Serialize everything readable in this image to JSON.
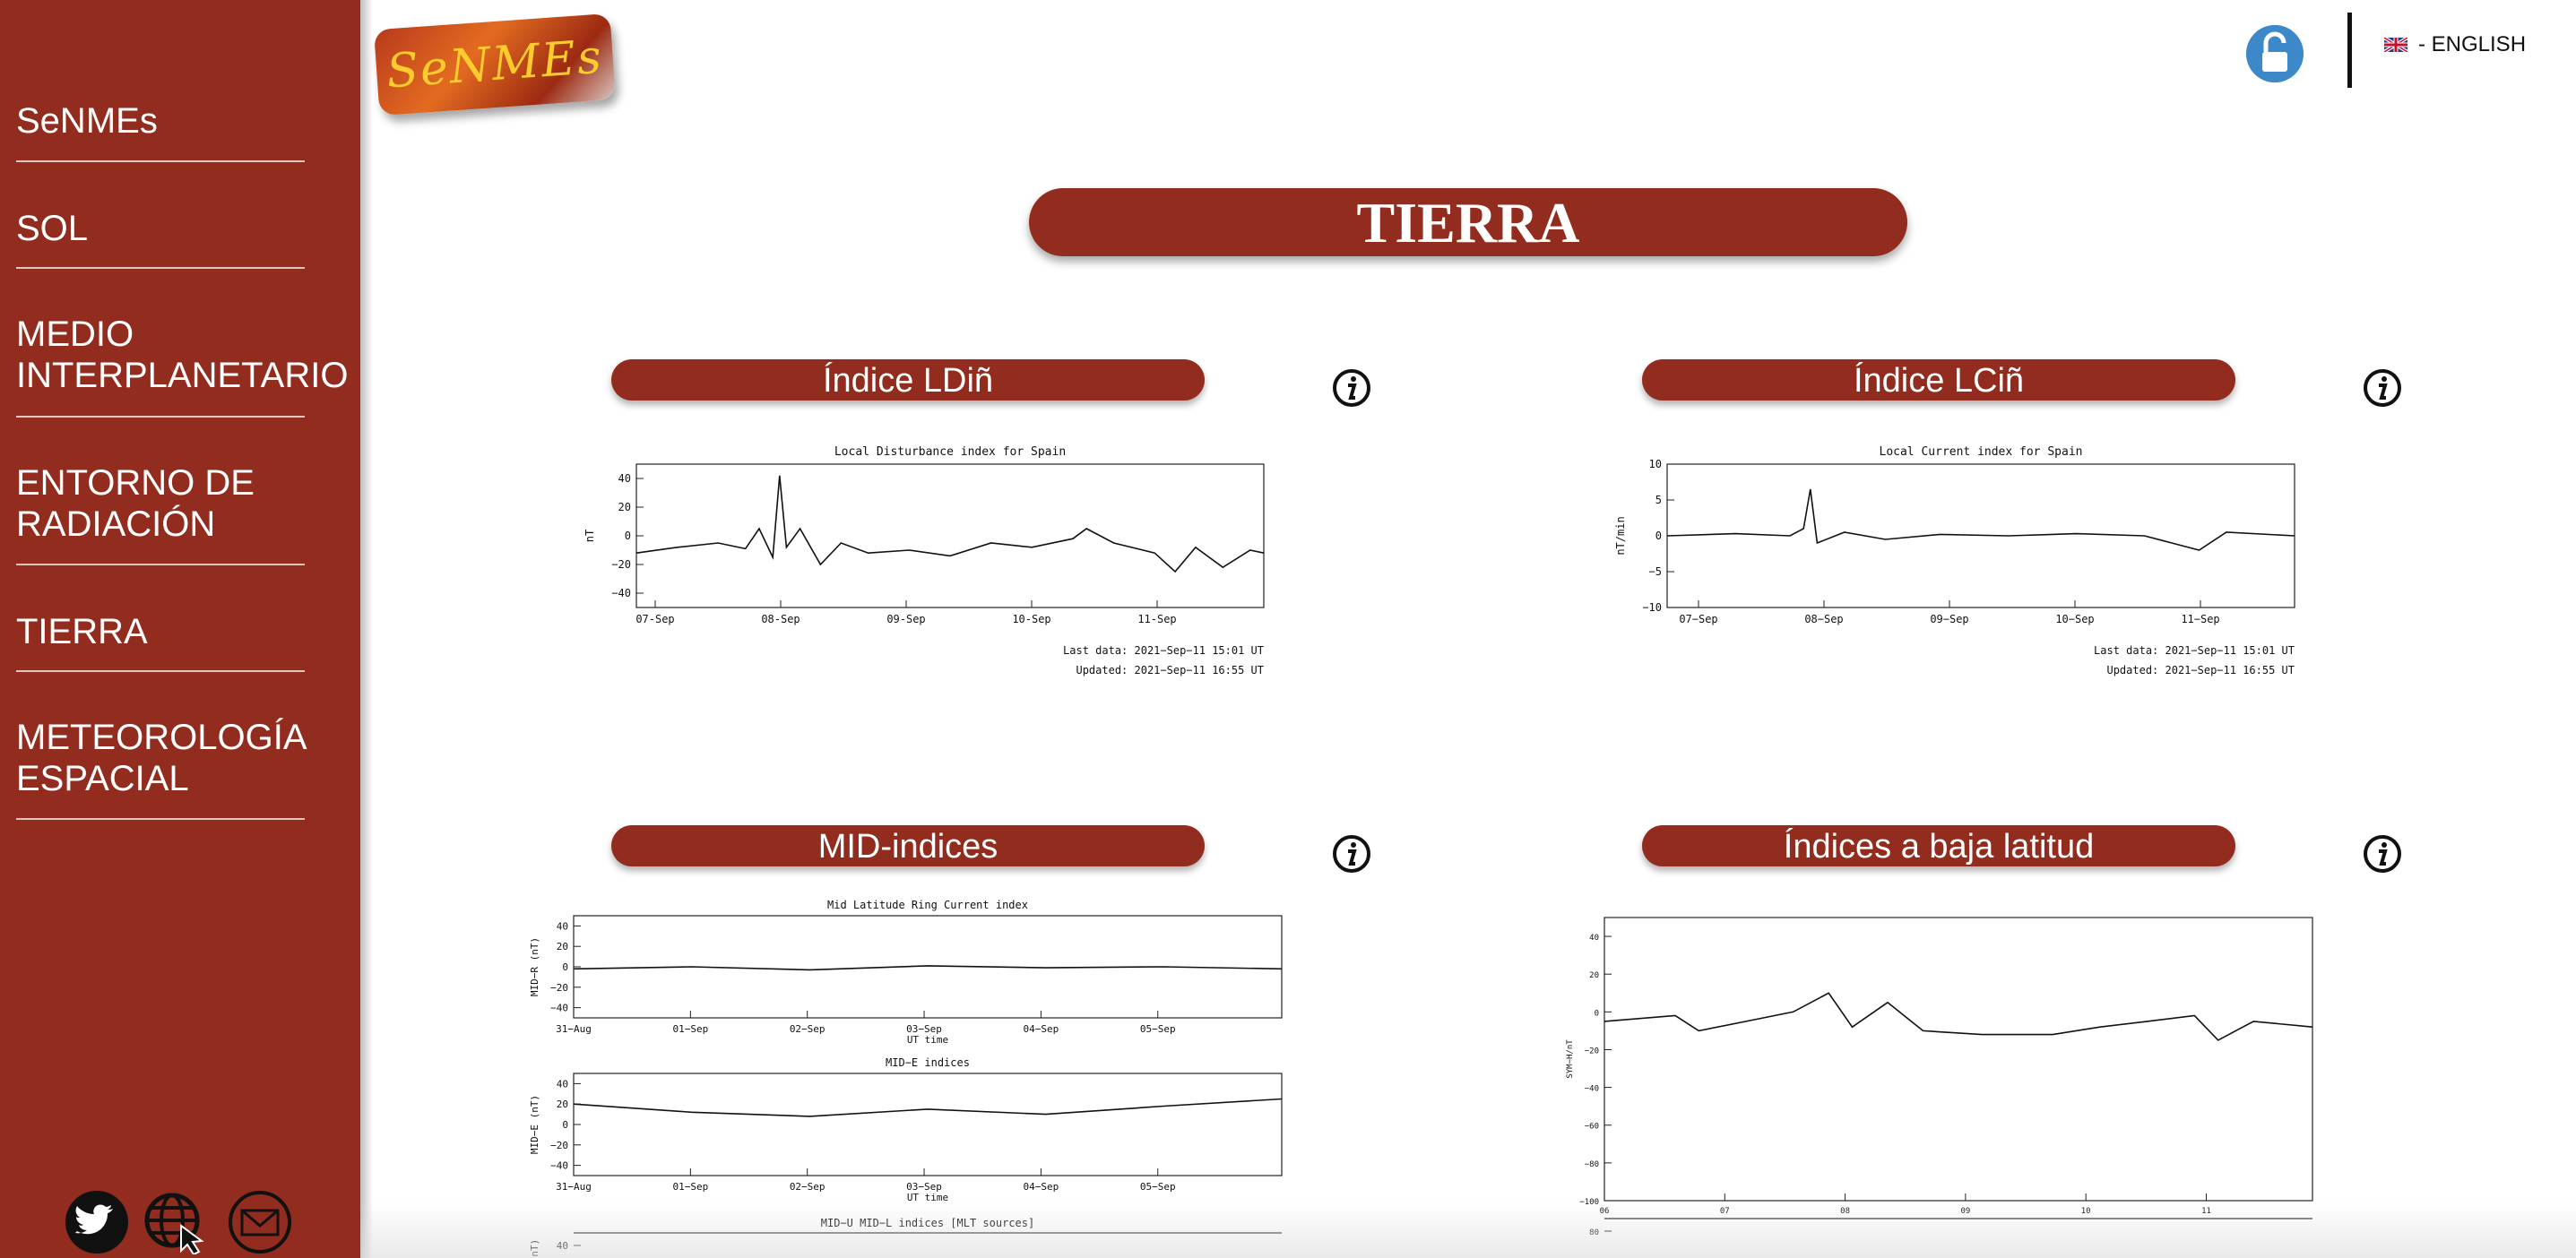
{
  "site": {
    "logo_text": "SeNMEs"
  },
  "sidebar": {
    "items": [
      {
        "label": "SeNMEs"
      },
      {
        "label": "SOL"
      },
      {
        "label": "MEDIO\nINTERPLANETARIO"
      },
      {
        "label": "ENTORNO DE\nRADIACIÓN"
      },
      {
        "label": "TIERRA"
      },
      {
        "label": "METEOROLOGÍA\nESPACIAL"
      }
    ],
    "social": [
      "twitter-icon",
      "globe-cursor-icon",
      "mail-icon"
    ]
  },
  "header": {
    "language_label": "- ENGLISH",
    "lock_icon": "unlock-icon"
  },
  "page": {
    "title": "TIERRA"
  },
  "sections": [
    {
      "title": "Índice LDiñ"
    },
    {
      "title": "Índice LCiñ"
    },
    {
      "title": "MID-indices"
    },
    {
      "title": "Índices a baja latitud"
    }
  ],
  "colors": {
    "brand": "#912c1e",
    "lock": "#3c88c8"
  },
  "chart_data": [
    {
      "type": "line",
      "title": "Local Disturbance index for Spain",
      "ylabel": "nT",
      "x_ticks": [
        "07-Sep",
        "08-Sep",
        "09-Sep",
        "10-Sep",
        "11-Sep"
      ],
      "y_ticks": [
        "40",
        "20",
        "0",
        "−20",
        "−40"
      ],
      "ylim": [
        -50,
        50
      ],
      "xlim": [
        0,
        4.6
      ],
      "series": [
        {
          "values": [
            [
              0,
              -12
            ],
            [
              0.3,
              -8
            ],
            [
              0.6,
              -5
            ],
            [
              0.8,
              -9
            ],
            [
              0.9,
              5
            ],
            [
              1.0,
              -15
            ],
            [
              1.05,
              42
            ],
            [
              1.1,
              -8
            ],
            [
              1.2,
              5
            ],
            [
              1.35,
              -20
            ],
            [
              1.5,
              -5
            ],
            [
              1.7,
              -12
            ],
            [
              2.0,
              -10
            ],
            [
              2.3,
              -14
            ],
            [
              2.6,
              -5
            ],
            [
              2.9,
              -8
            ],
            [
              3.2,
              -2
            ],
            [
              3.3,
              5
            ],
            [
              3.5,
              -5
            ],
            [
              3.8,
              -12
            ],
            [
              3.95,
              -25
            ],
            [
              4.1,
              -8
            ],
            [
              4.3,
              -22
            ],
            [
              4.5,
              -10
            ],
            [
              4.6,
              -12
            ]
          ]
        }
      ],
      "notes": [
        "Last data: 2021−Sep−11   15:01 UT",
        "Updated: 2021−Sep−11   16:55 UT"
      ]
    },
    {
      "type": "line",
      "title": "Local Current index for Spain",
      "ylabel": "nT/min",
      "x_ticks": [
        "07−Sep",
        "08−Sep",
        "09−Sep",
        "10−Sep",
        "11−Sep"
      ],
      "y_ticks": [
        "10",
        "5",
        "0",
        "−5",
        "−10"
      ],
      "ylim": [
        -10,
        10
      ],
      "xlim": [
        0,
        4.6
      ],
      "series": [
        {
          "values": [
            [
              0,
              0
            ],
            [
              0.5,
              0.3
            ],
            [
              0.9,
              0
            ],
            [
              1.0,
              1
            ],
            [
              1.05,
              6.5
            ],
            [
              1.1,
              -1
            ],
            [
              1.3,
              0.5
            ],
            [
              1.6,
              -0.5
            ],
            [
              2.0,
              0.2
            ],
            [
              2.5,
              0
            ],
            [
              3.0,
              0.3
            ],
            [
              3.5,
              0
            ],
            [
              3.7,
              -1
            ],
            [
              3.9,
              -2
            ],
            [
              4.1,
              0.5
            ],
            [
              4.6,
              0
            ]
          ]
        }
      ],
      "notes": [
        "Last data: 2021−Sep−11   15:01 UT",
        "Updated: 2021−Sep−11   16:55 UT"
      ]
    },
    {
      "type": "line",
      "title": "Mid Latitude Ring Current index",
      "ylabel": "MID−R (nT)",
      "x_ticks": [
        "31−Aug",
        "01−Sep",
        "02−Sep",
        "03−Sep",
        "04−Sep",
        "05−Sep"
      ],
      "xlabel": "UT time",
      "y_ticks": [
        "40",
        "20",
        "0",
        "−20",
        "−40"
      ],
      "ylim": [
        -50,
        50
      ],
      "xlim": [
        0,
        6
      ],
      "series": [
        {
          "values": [
            [
              0,
              -2
            ],
            [
              1,
              0
            ],
            [
              2,
              -3
            ],
            [
              3,
              1
            ],
            [
              4,
              -1
            ],
            [
              5,
              0
            ],
            [
              6,
              -2
            ]
          ]
        }
      ]
    },
    {
      "type": "line",
      "title": "MID−E  indices",
      "ylabel": "MID−E (nT)",
      "x_ticks": [
        "31−Aug",
        "01−Sep",
        "02−Sep",
        "03−Sep",
        "04−Sep",
        "05−Sep"
      ],
      "xlabel": "UT time",
      "y_ticks": [
        "40",
        "20",
        "0",
        "−20",
        "−40"
      ],
      "ylim": [
        -50,
        50
      ],
      "xlim": [
        0,
        6
      ],
      "series": [
        {
          "values": [
            [
              0,
              20
            ],
            [
              1,
              12
            ],
            [
              2,
              8
            ],
            [
              3,
              15
            ],
            [
              4,
              10
            ],
            [
              5,
              18
            ],
            [
              6,
              25
            ]
          ]
        }
      ]
    },
    {
      "type": "line",
      "title": "MID−U MID−L  indices [MLT sources]",
      "ylabel": "(nT)",
      "y_ticks": [
        "40"
      ]
    },
    {
      "type": "line",
      "ylabel": "SYM−H/nT",
      "x_ticks": [
        "06",
        "07",
        "08",
        "09",
        "10",
        "11"
      ],
      "y_ticks": [
        "40",
        "20",
        "0",
        "−20",
        "−40",
        "−60",
        "−80",
        "−100"
      ],
      "ylim": [
        -100,
        50
      ],
      "xlim": [
        0,
        6
      ],
      "series": [
        {
          "values": [
            [
              0,
              -5
            ],
            [
              0.6,
              -2
            ],
            [
              0.8,
              -10
            ],
            [
              1.2,
              -5
            ],
            [
              1.6,
              0
            ],
            [
              1.9,
              10
            ],
            [
              2.1,
              -8
            ],
            [
              2.4,
              5
            ],
            [
              2.7,
              -10
            ],
            [
              3.2,
              -12
            ],
            [
              3.8,
              -12
            ],
            [
              4.2,
              -8
            ],
            [
              4.6,
              -5
            ],
            [
              5.0,
              -2
            ],
            [
              5.2,
              -15
            ],
            [
              5.5,
              -5
            ],
            [
              6,
              -8
            ]
          ]
        }
      ]
    },
    {
      "type": "line",
      "y_ticks": [
        "80"
      ]
    }
  ]
}
